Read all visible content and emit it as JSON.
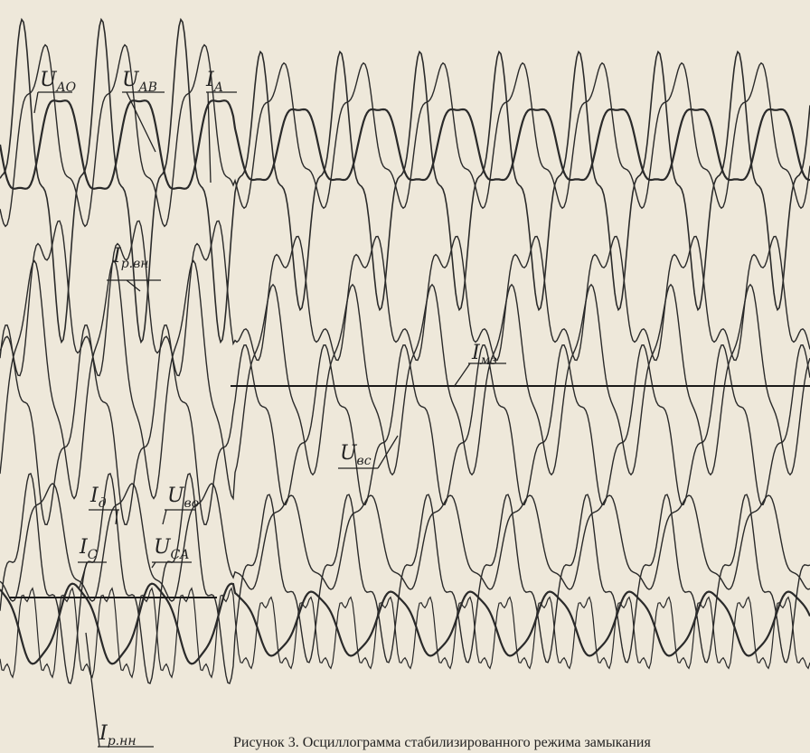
{
  "figure": {
    "labels": [
      {
        "symbol": "U",
        "subscript": "AO"
      },
      {
        "symbol": "U",
        "subscript": "AB"
      },
      {
        "symbol": "I",
        "subscript": "A"
      },
      {
        "symbol": "I",
        "subscript": "р.вн"
      },
      {
        "symbol": "I",
        "subscript": "мз"
      },
      {
        "symbol": "U",
        "subscript": "вс"
      },
      {
        "symbol": "I",
        "subscript": "д"
      },
      {
        "symbol": "U",
        "subscript": "во"
      },
      {
        "symbol": "I",
        "subscript": "C"
      },
      {
        "symbol": "U",
        "subscript": "CA"
      },
      {
        "symbol": "I",
        "subscript": "р.нн"
      }
    ],
    "caption": "Рисунок 3. Осциллограмма стабилизированного режима замыкания"
  }
}
